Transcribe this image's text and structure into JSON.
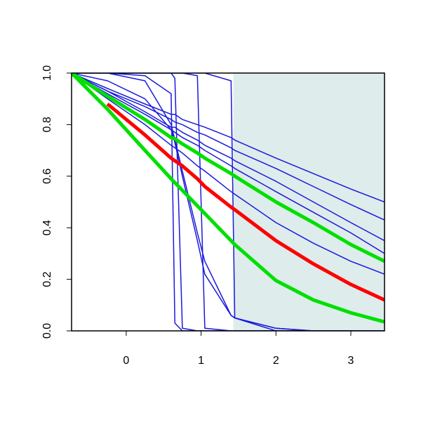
{
  "chart_data": {
    "type": "line",
    "x": [
      -0.73,
      -0.25,
      0.25,
      0.6,
      0.65,
      0.75,
      0.95,
      1.05,
      1.4,
      1.45,
      2,
      2.5,
      3,
      3.45
    ],
    "xlim": [
      -0.73,
      3.45
    ],
    "ylim": [
      0,
      1
    ],
    "xticks": [
      0,
      1,
      2,
      3
    ],
    "yticks": [
      {
        "value": 0,
        "label": "0.0"
      },
      {
        "value": 0.2,
        "label": "0.2"
      },
      {
        "value": 0.4,
        "label": "0.4"
      },
      {
        "value": 0.6,
        "label": "0.6"
      },
      {
        "value": 0.8,
        "label": "0.8"
      },
      {
        "value": 1,
        "label": "1.0"
      }
    ],
    "shaded_x_from": 1.43,
    "shade_color": "#deecec",
    "series": [
      {
        "color": "#1a1adc",
        "values": [
          1,
          0.94,
          0.88,
          0.84,
          0.84,
          0.82,
          0.8,
          0.79,
          0.75,
          0.74,
          0.67,
          0.61,
          0.55,
          0.5
        ]
      },
      {
        "color": "#1a1adc",
        "values": [
          1,
          0.93,
          0.87,
          0.82,
          0.81,
          0.8,
          0.77,
          0.76,
          0.71,
          0.7,
          0.63,
          0.56,
          0.49,
          0.43
        ]
      },
      {
        "color": "#1a1adc",
        "values": [
          1,
          0.93,
          0.85,
          0.79,
          0.79,
          0.77,
          0.74,
          0.72,
          0.67,
          0.66,
          0.58,
          0.5,
          0.42,
          0.35
        ]
      },
      {
        "color": "#1a1adc",
        "values": [
          1,
          0.92,
          0.84,
          0.78,
          0.77,
          0.75,
          0.72,
          0.7,
          0.64,
          0.63,
          0.54,
          0.46,
          0.38,
          0.3
        ]
      },
      {
        "color": "#1a1adc",
        "values": [
          1,
          0.9,
          0.8,
          0.72,
          0.71,
          0.69,
          0.64,
          0.62,
          0.54,
          0.53,
          0.42,
          0.34,
          0.27,
          0.22
        ]
      },
      {
        "color": "#1a1adc",
        "values": [
          1,
          1,
          0.99,
          0.92,
          0.03,
          0,
          0,
          0,
          0,
          0,
          0,
          0,
          0,
          0
        ]
      },
      {
        "color": "#1a1adc",
        "values": [
          1,
          1,
          1,
          1,
          0.98,
          0.01,
          0,
          0,
          0,
          0,
          0,
          0,
          0,
          0
        ]
      },
      {
        "color": "#1a1adc",
        "values": [
          1,
          1,
          1,
          1,
          1,
          1,
          0.99,
          0.01,
          0,
          0,
          0,
          0,
          0,
          0
        ]
      },
      {
        "color": "#1a1adc",
        "values": [
          1,
          1,
          1,
          1,
          1,
          1,
          1,
          1,
          0.97,
          0.05,
          0,
          0,
          0,
          0
        ]
      },
      {
        "color": "#1a1adc",
        "values": [
          1,
          1,
          0.97,
          0.8,
          0.74,
          0.62,
          0.38,
          0.27,
          0.06,
          0.05,
          0.01,
          0,
          0,
          0
        ]
      },
      {
        "color": "#1a1adc",
        "values": [
          1,
          0.97,
          0.9,
          0.78,
          0.73,
          0.6,
          0.35,
          0.22,
          0.06,
          0.05,
          0.01,
          0,
          0,
          0
        ]
      },
      {
        "color": "#ff0000",
        "width": 5,
        "values": [
          null,
          0.88,
          0.76,
          0.67,
          0.66,
          0.64,
          0.59,
          0.56,
          0.48,
          0.47,
          0.35,
          0.26,
          0.18,
          0.12
        ]
      },
      {
        "color": "#00e000",
        "width": 5,
        "values": [
          1,
          0.86,
          0.7,
          0.59,
          0.575,
          0.545,
          0.485,
          0.455,
          0.35,
          0.335,
          0.195,
          0.12,
          0.07,
          0.035
        ]
      },
      {
        "color": "#00e000",
        "width": 5,
        "values": [
          1,
          0.91,
          0.82,
          0.75,
          0.745,
          0.725,
          0.69,
          0.67,
          0.61,
          0.6,
          0.5,
          0.42,
          0.335,
          0.27
        ]
      }
    ]
  }
}
